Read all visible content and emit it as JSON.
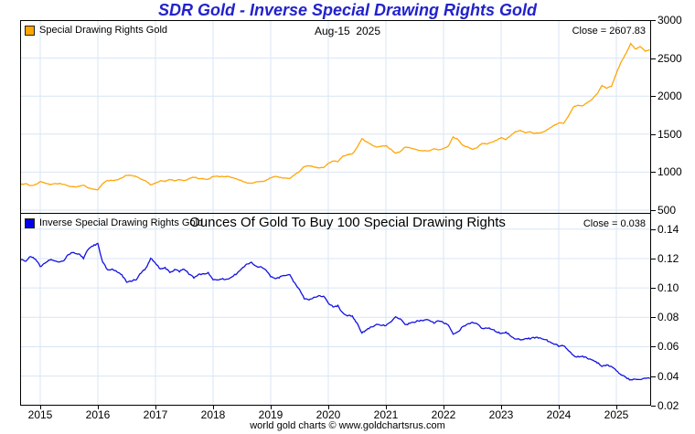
{
  "page": {
    "title": "SDR Gold - Inverse Special Drawing Rights Gold",
    "footer": "world gold charts © www.goldchartsrus.com"
  },
  "top_panel": {
    "legend": "Special Drawing Rights Gold",
    "date_label": "Aug-15  2025",
    "close_label": "Close = 2607.83",
    "close_value": 2607.83,
    "line_color": "#ffa60a",
    "swatch_color": "#ffa500"
  },
  "bottom_panel": {
    "legend": "Inverse Special Drawing Rights Gold",
    "caption": "Ounces Of Gold To Buy 100 Special Drawing Rights",
    "close_label": "Close = 0.038",
    "close_value": 0.038,
    "line_color": "#1212e0",
    "swatch_color": "#0000e8"
  },
  "chart_data": [
    {
      "type": "line",
      "panel": "top",
      "name": "Special Drawing Rights Gold",
      "x_start": "2014-09",
      "interval": "monthly",
      "x_tick_years": [
        2015,
        2016,
        2017,
        2018,
        2019,
        2020,
        2021,
        2022,
        2023,
        2024,
        2025
      ],
      "y_ticks": [
        {
          "v": 3000,
          "label": "3000"
        },
        {
          "v": 2500,
          "label": "2500"
        },
        {
          "v": 2000,
          "label": "2000"
        },
        {
          "v": 1500,
          "label": "1500"
        },
        {
          "v": 1000,
          "label": "1000"
        },
        {
          "v": 500,
          "label": "500"
        }
      ],
      "y_range": [
        500,
        3000
      ],
      "grid": true,
      "legend_position": "top-left",
      "last_point_date": "Aug-15 2025",
      "last_point_value": 2607.83,
      "values": [
        838,
        846,
        822,
        836,
        872,
        858,
        838,
        846,
        851,
        840,
        812,
        806,
        812,
        831,
        792,
        776,
        770,
        851,
        889,
        887,
        899,
        921,
        961,
        956,
        944,
        906,
        884,
        831,
        856,
        884,
        879,
        904,
        889,
        899,
        886,
        914,
        934,
        916,
        914,
        906,
        944,
        946,
        941,
        946,
        926,
        911,
        886,
        859,
        854,
        871,
        876,
        891,
        926,
        941,
        931,
        921,
        919,
        969,
        1011,
        1076,
        1086,
        1069,
        1056,
        1061,
        1114,
        1146,
        1139,
        1206,
        1229,
        1241,
        1321,
        1441,
        1396,
        1361,
        1331,
        1341,
        1346,
        1301,
        1246,
        1271,
        1331,
        1321,
        1301,
        1286,
        1281,
        1279,
        1311,
        1291,
        1311,
        1341,
        1461,
        1431,
        1351,
        1331,
        1301,
        1321,
        1381,
        1371,
        1391,
        1421,
        1451,
        1431,
        1481,
        1531,
        1546,
        1521,
        1526,
        1511,
        1516,
        1531,
        1576,
        1611,
        1651,
        1646,
        1731,
        1856,
        1881,
        1871,
        1916,
        1961,
        2031,
        2136,
        2106,
        2131,
        2301,
        2451,
        2561,
        2691,
        2621,
        2651,
        2591,
        2607.83
      ]
    },
    {
      "type": "line",
      "panel": "bottom",
      "name": "Inverse Special Drawing Rights Gold",
      "x_start": "2014-09",
      "interval": "monthly",
      "x_tick_years": [
        2015,
        2016,
        2017,
        2018,
        2019,
        2020,
        2021,
        2022,
        2023,
        2024,
        2025
      ],
      "y_ticks": [
        {
          "v": 0.14,
          "label": "0.14"
        },
        {
          "v": 0.12,
          "label": "0.12"
        },
        {
          "v": 0.1,
          "label": "0.10"
        },
        {
          "v": 0.08,
          "label": "0.08"
        },
        {
          "v": 0.06,
          "label": "0.06"
        },
        {
          "v": 0.04,
          "label": "0.04"
        },
        {
          "v": 0.02,
          "label": "0.02"
        }
      ],
      "y_range": [
        0.02,
        0.152
      ],
      "grid": true,
      "legend_position": "top-left",
      "last_point_date": "Aug-15 2025",
      "last_point_value": 0.038,
      "values": [
        0.1193,
        0.1182,
        0.1217,
        0.1196,
        0.1147,
        0.1166,
        0.1193,
        0.1182,
        0.1175,
        0.119,
        0.1232,
        0.1241,
        0.1232,
        0.1203,
        0.1263,
        0.1289,
        0.1299,
        0.1175,
        0.1125,
        0.1127,
        0.1112,
        0.1086,
        0.1041,
        0.1046,
        0.1059,
        0.1104,
        0.1131,
        0.1203,
        0.1168,
        0.1131,
        0.1138,
        0.1106,
        0.1125,
        0.1112,
        0.1129,
        0.1094,
        0.1071,
        0.1092,
        0.1094,
        0.1104,
        0.1059,
        0.1057,
        0.1063,
        0.1057,
        0.108,
        0.1098,
        0.1129,
        0.1164,
        0.1171,
        0.1148,
        0.1142,
        0.1122,
        0.108,
        0.1063,
        0.1074,
        0.1086,
        0.1088,
        0.1032,
        0.0989,
        0.0929,
        0.0921,
        0.0935,
        0.0947,
        0.0943,
        0.0898,
        0.0873,
        0.0878,
        0.0829,
        0.0814,
        0.0806,
        0.0757,
        0.0694,
        0.0716,
        0.0735,
        0.0751,
        0.0746,
        0.0743,
        0.0769,
        0.0803,
        0.0787,
        0.0751,
        0.0757,
        0.0769,
        0.0778,
        0.0781,
        0.0782,
        0.0763,
        0.0775,
        0.0763,
        0.0746,
        0.0684,
        0.0699,
        0.074,
        0.0751,
        0.0769,
        0.0757,
        0.0724,
        0.0729,
        0.0719,
        0.0704,
        0.0689,
        0.0699,
        0.0675,
        0.0653,
        0.0647,
        0.0657,
        0.0655,
        0.0662,
        0.066,
        0.0653,
        0.0635,
        0.0621,
        0.0606,
        0.0608,
        0.0578,
        0.0539,
        0.0532,
        0.0534,
        0.0522,
        0.051,
        0.0492,
        0.0468,
        0.0475,
        0.0469,
        0.0435,
        0.0408,
        0.039,
        0.0372,
        0.0382,
        0.0377,
        0.0386,
        0.0383
      ]
    }
  ]
}
